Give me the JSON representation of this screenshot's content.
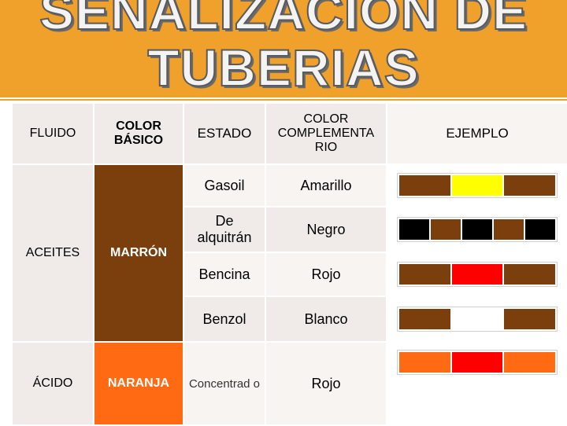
{
  "title_line1": "SEÑALIZACIÓN DE",
  "title_line2": "TUBERIAS",
  "headers": {
    "fluido": "FLUIDO",
    "color_basico": "COLOR BÁSICO",
    "estado": "ESTADO",
    "color_complementario": "COLOR COMPLEMENTA RIO",
    "ejemplo": "EJEMPLO"
  },
  "groups": [
    {
      "fluido": "ACEITES",
      "color_basico": "MARRÓN"
    },
    {
      "fluido": "ÁCIDO",
      "color_basico": "NARANJA"
    }
  ],
  "rows": [
    {
      "estado": "Gasoil",
      "complementario": "Amarillo",
      "ejemplo_colors": [
        "#7a3f0d",
        "#ffff00",
        "#7a3f0d"
      ]
    },
    {
      "estado": "De alquitrán",
      "complementario": "Negro",
      "ejemplo_colors": [
        "#000000",
        "#7a3f0d",
        "#000000",
        "#7a3f0d",
        "#000000"
      ]
    },
    {
      "estado": "Bencina",
      "complementario": "Rojo",
      "ejemplo_colors": [
        "#7a3f0d",
        "#ff0000",
        "#7a3f0d"
      ]
    },
    {
      "estado": "Benzol",
      "complementario": "Blanco",
      "ejemplo_colors": [
        "#7a3f0d",
        "#ffffff",
        "#7a3f0d"
      ]
    },
    {
      "estado": "Concentrad o",
      "complementario": "Rojo",
      "ejemplo_colors": [
        "#ff6a13",
        "#ff0000",
        "#ff6a13"
      ]
    }
  ],
  "colors": {
    "banner": "#f0a12b",
    "marron": "#7a3f0d",
    "naranja": "#ff6a13",
    "cell_light": "#f0ebe8"
  }
}
